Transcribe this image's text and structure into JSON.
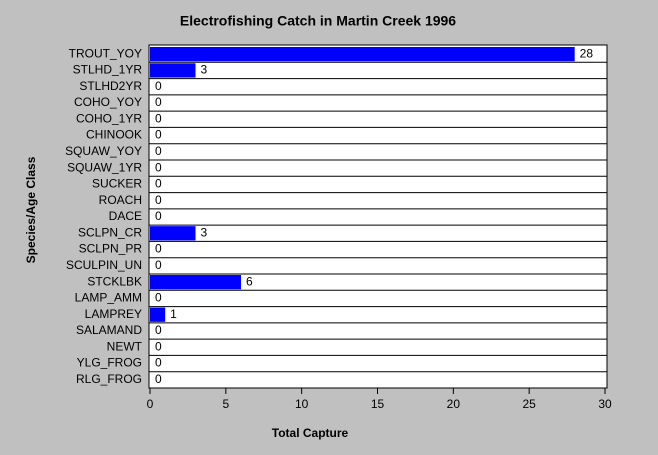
{
  "chart_data": {
    "type": "bar",
    "orientation": "horizontal",
    "title": "Electrofishing Catch in Martin Creek 1996",
    "x_label": "Total Capture",
    "y_label": "Species/Age Class",
    "categories": [
      "TROUT_YOY",
      "STLHD_1YR",
      "STLHD2YR",
      "COHO_YOY",
      "COHO_1YR",
      "CHINOOK",
      "SQUAW_YOY",
      "SQUAW_1YR",
      "SUCKER",
      "ROACH",
      "DACE",
      "SCLPN_CR",
      "SCLPN_PR",
      "SCULPIN_UN",
      "STCKLBK",
      "LAMP_AMM",
      "LAMPREY",
      "SALAMAND",
      "NEWT",
      "YLG_FROG",
      "RLG_FROG"
    ],
    "values": [
      28,
      3,
      0,
      0,
      0,
      0,
      0,
      0,
      0,
      0,
      0,
      3,
      0,
      0,
      6,
      0,
      1,
      0,
      0,
      0,
      0
    ],
    "color": "#0000ff",
    "xlim": [
      0,
      30
    ],
    "xticks": [
      0,
      5,
      10,
      15,
      20,
      25,
      30
    ]
  }
}
